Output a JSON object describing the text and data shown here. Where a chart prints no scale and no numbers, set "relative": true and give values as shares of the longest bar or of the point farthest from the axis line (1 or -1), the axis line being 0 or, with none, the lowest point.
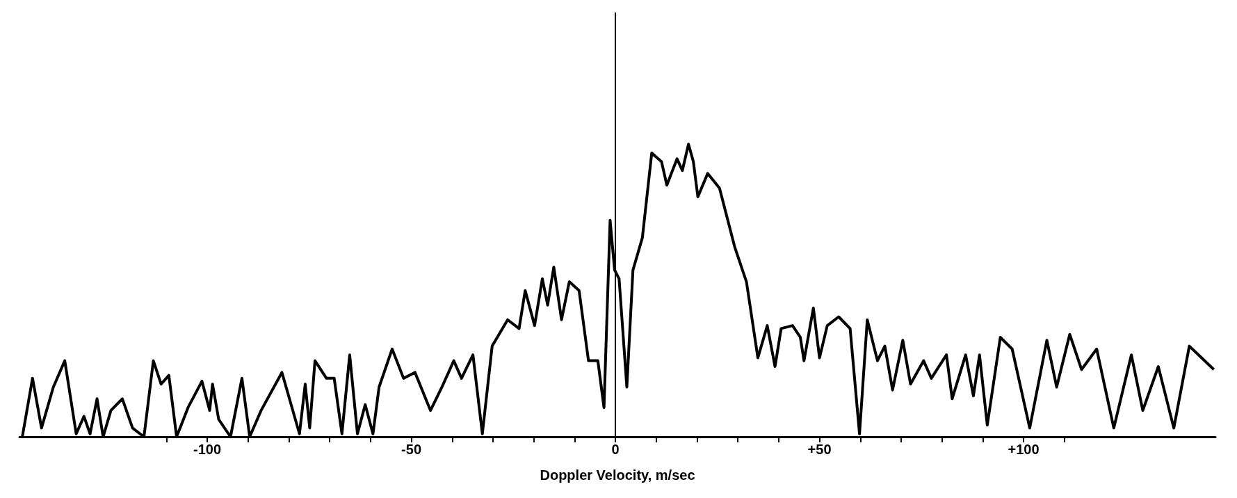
{
  "chart_data": {
    "type": "line",
    "xlabel": "Doppler Velocity, m/sec",
    "relative": true,
    "marker": "none",
    "line_style": "solid",
    "xlim": [
      -146,
      147
    ],
    "xticks": [
      {
        "value": -110,
        "label": null
      },
      {
        "value": -100,
        "label": "-100"
      },
      {
        "value": -90,
        "label": null
      },
      {
        "value": -80,
        "label": null
      },
      {
        "value": -70,
        "label": null
      },
      {
        "value": -60,
        "label": null
      },
      {
        "value": -50,
        "label": "-50"
      },
      {
        "value": -40,
        "label": null
      },
      {
        "value": -30,
        "label": null
      },
      {
        "value": -20,
        "label": null
      },
      {
        "value": -10,
        "label": null
      },
      {
        "value": 0,
        "label": "0"
      },
      {
        "value": 10,
        "label": null
      },
      {
        "value": 20,
        "label": null
      },
      {
        "value": 30,
        "label": null
      },
      {
        "value": 40,
        "label": null
      },
      {
        "value": 50,
        "label": "+50"
      },
      {
        "value": 60,
        "label": null
      },
      {
        "value": 70,
        "label": null
      },
      {
        "value": 80,
        "label": null
      },
      {
        "value": 90,
        "label": null
      },
      {
        "value": 100,
        "label": "+100"
      },
      {
        "value": 110,
        "label": null
      }
    ],
    "ref_lines": [
      {
        "axis": "x",
        "value": 0,
        "label": null,
        "color": "#000000"
      }
    ],
    "series": [
      {
        "color": "#000000",
        "x": [
          -145.3,
          -142.8,
          -140.6,
          -137.7,
          -134.9,
          -132.1,
          -130.2,
          -128.7,
          -127,
          -125.5,
          -123.6,
          -120.8,
          -118.3,
          -115.5,
          -113.2,
          -111.3,
          -109.4,
          -107.5,
          -104.7,
          -101.3,
          -99.4,
          -98.7,
          -97.2,
          -94.3,
          -91.5,
          -89.6,
          -86.8,
          -81.7,
          -77.4,
          -76,
          -74.9,
          -73.6,
          -70.8,
          -68.9,
          -67,
          -65.1,
          -63.2,
          -61.3,
          -59.4,
          -57.9,
          -54.7,
          -51.9,
          -49.1,
          -45.3,
          -42.5,
          -39.6,
          -37.7,
          -34.9,
          -32.6,
          -30.2,
          -26.4,
          -23.6,
          -22.1,
          -19.8,
          -17.9,
          -16.6,
          -15.1,
          -13.2,
          -11.3,
          -8.9,
          -6.6,
          -4.3,
          -2.8,
          -1.3,
          -0.2,
          0.9,
          2.8,
          4.3,
          6.6,
          8.9,
          11.3,
          12.6,
          15.1,
          16.4,
          17.9,
          19.1,
          20.2,
          22.6,
          25.5,
          29.2,
          32.1,
          34.9,
          37.2,
          39.1,
          40.6,
          43.4,
          45.3,
          46.2,
          48.5,
          50,
          51.9,
          54.7,
          57.5,
          59.8,
          61.7,
          64.2,
          66,
          67.9,
          70.4,
          72.3,
          75.5,
          77.4,
          81.1,
          82.5,
          85.8,
          87.7,
          89.2,
          91.1,
          94.3,
          97.2,
          101.5,
          105.7,
          108.1,
          111.3,
          114.2,
          117.9,
          122.1,
          126.4,
          129.2,
          133,
          136.8,
          140.6,
          146.6
        ],
        "values": [
          0,
          0.2,
          0.03,
          0.17,
          0.26,
          0.01,
          0.07,
          0.01,
          0.13,
          0,
          0.09,
          0.13,
          0.03,
          0,
          0.26,
          0.18,
          0.21,
          0,
          0.1,
          0.19,
          0.09,
          0.18,
          0.06,
          0,
          0.2,
          0,
          0.09,
          0.22,
          0.01,
          0.18,
          0.03,
          0.26,
          0.2,
          0.2,
          0.01,
          0.28,
          0.01,
          0.11,
          0.01,
          0.17,
          0.3,
          0.2,
          0.22,
          0.09,
          0.17,
          0.26,
          0.2,
          0.28,
          0.01,
          0.31,
          0.4,
          0.37,
          0.5,
          0.38,
          0.54,
          0.45,
          0.58,
          0.4,
          0.53,
          0.5,
          0.26,
          0.26,
          0.1,
          0.74,
          0.57,
          0.54,
          0.17,
          0.57,
          0.68,
          0.97,
          0.94,
          0.86,
          0.95,
          0.91,
          1,
          0.94,
          0.82,
          0.9,
          0.85,
          0.65,
          0.53,
          0.27,
          0.38,
          0.24,
          0.37,
          0.38,
          0.34,
          0.26,
          0.44,
          0.27,
          0.38,
          0.41,
          0.37,
          0.01,
          0.4,
          0.26,
          0.31,
          0.16,
          0.33,
          0.18,
          0.26,
          0.2,
          0.28,
          0.13,
          0.28,
          0.14,
          0.28,
          0.04,
          0.34,
          0.3,
          0.03,
          0.33,
          0.17,
          0.35,
          0.23,
          0.3,
          0.03,
          0.28,
          0.09,
          0.24,
          0.03,
          0.31,
          0.23
        ]
      }
    ]
  }
}
